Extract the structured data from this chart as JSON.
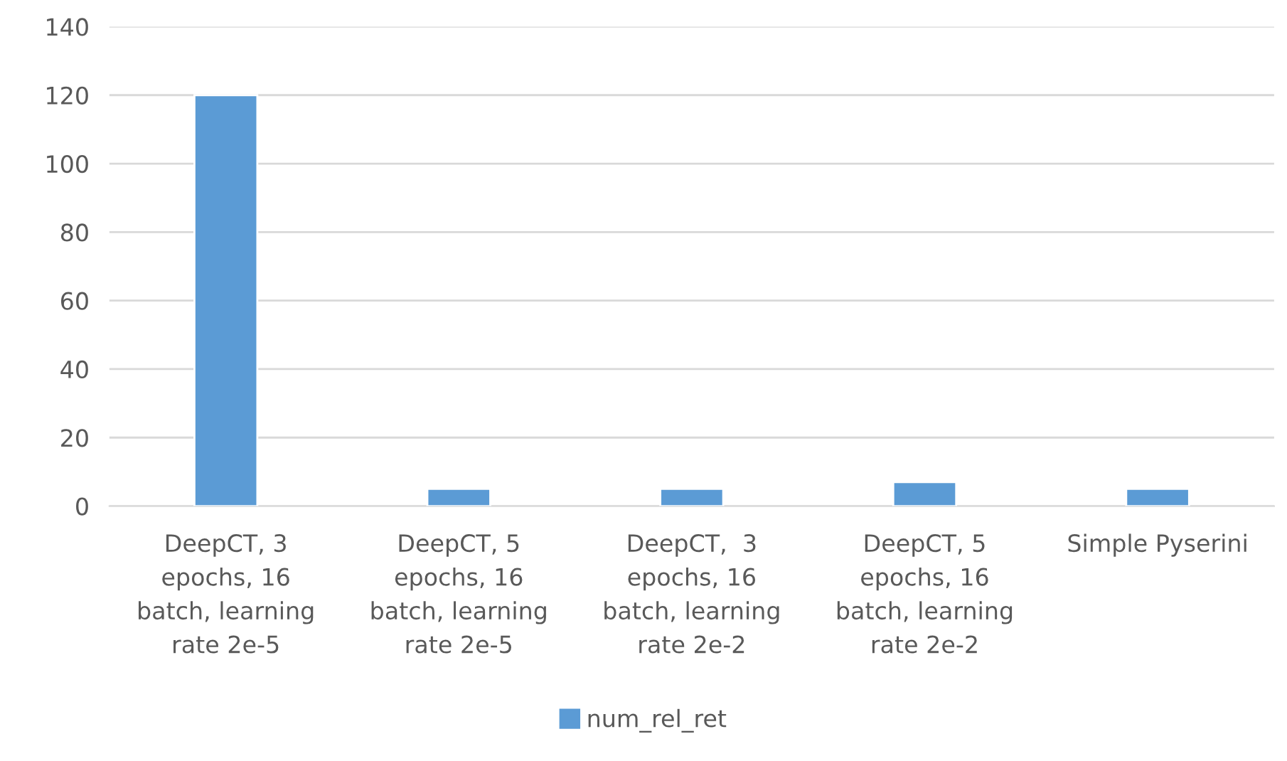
{
  "chart_data": {
    "type": "bar",
    "categories": [
      "DeepCT, 3 epochs, 16 batch, learning rate 2e-5",
      "DeepCT, 5 epochs, 16 batch, learning rate 2e-5",
      "DeepCT,  3 epochs, 16 batch, learning rate 2e-2",
      "DeepCT, 5 epochs, 16 batch, learning rate 2e-2",
      "Simple Pyserini"
    ],
    "series": [
      {
        "name": "num_rel_ret",
        "color": "#5b9bd5",
        "values": [
          120,
          5,
          5,
          7,
          5
        ]
      }
    ],
    "ylim": [
      0,
      140
    ],
    "yticks": [
      0,
      20,
      40,
      60,
      80,
      100,
      120,
      140
    ],
    "grid": "y",
    "legend": "bottom"
  }
}
